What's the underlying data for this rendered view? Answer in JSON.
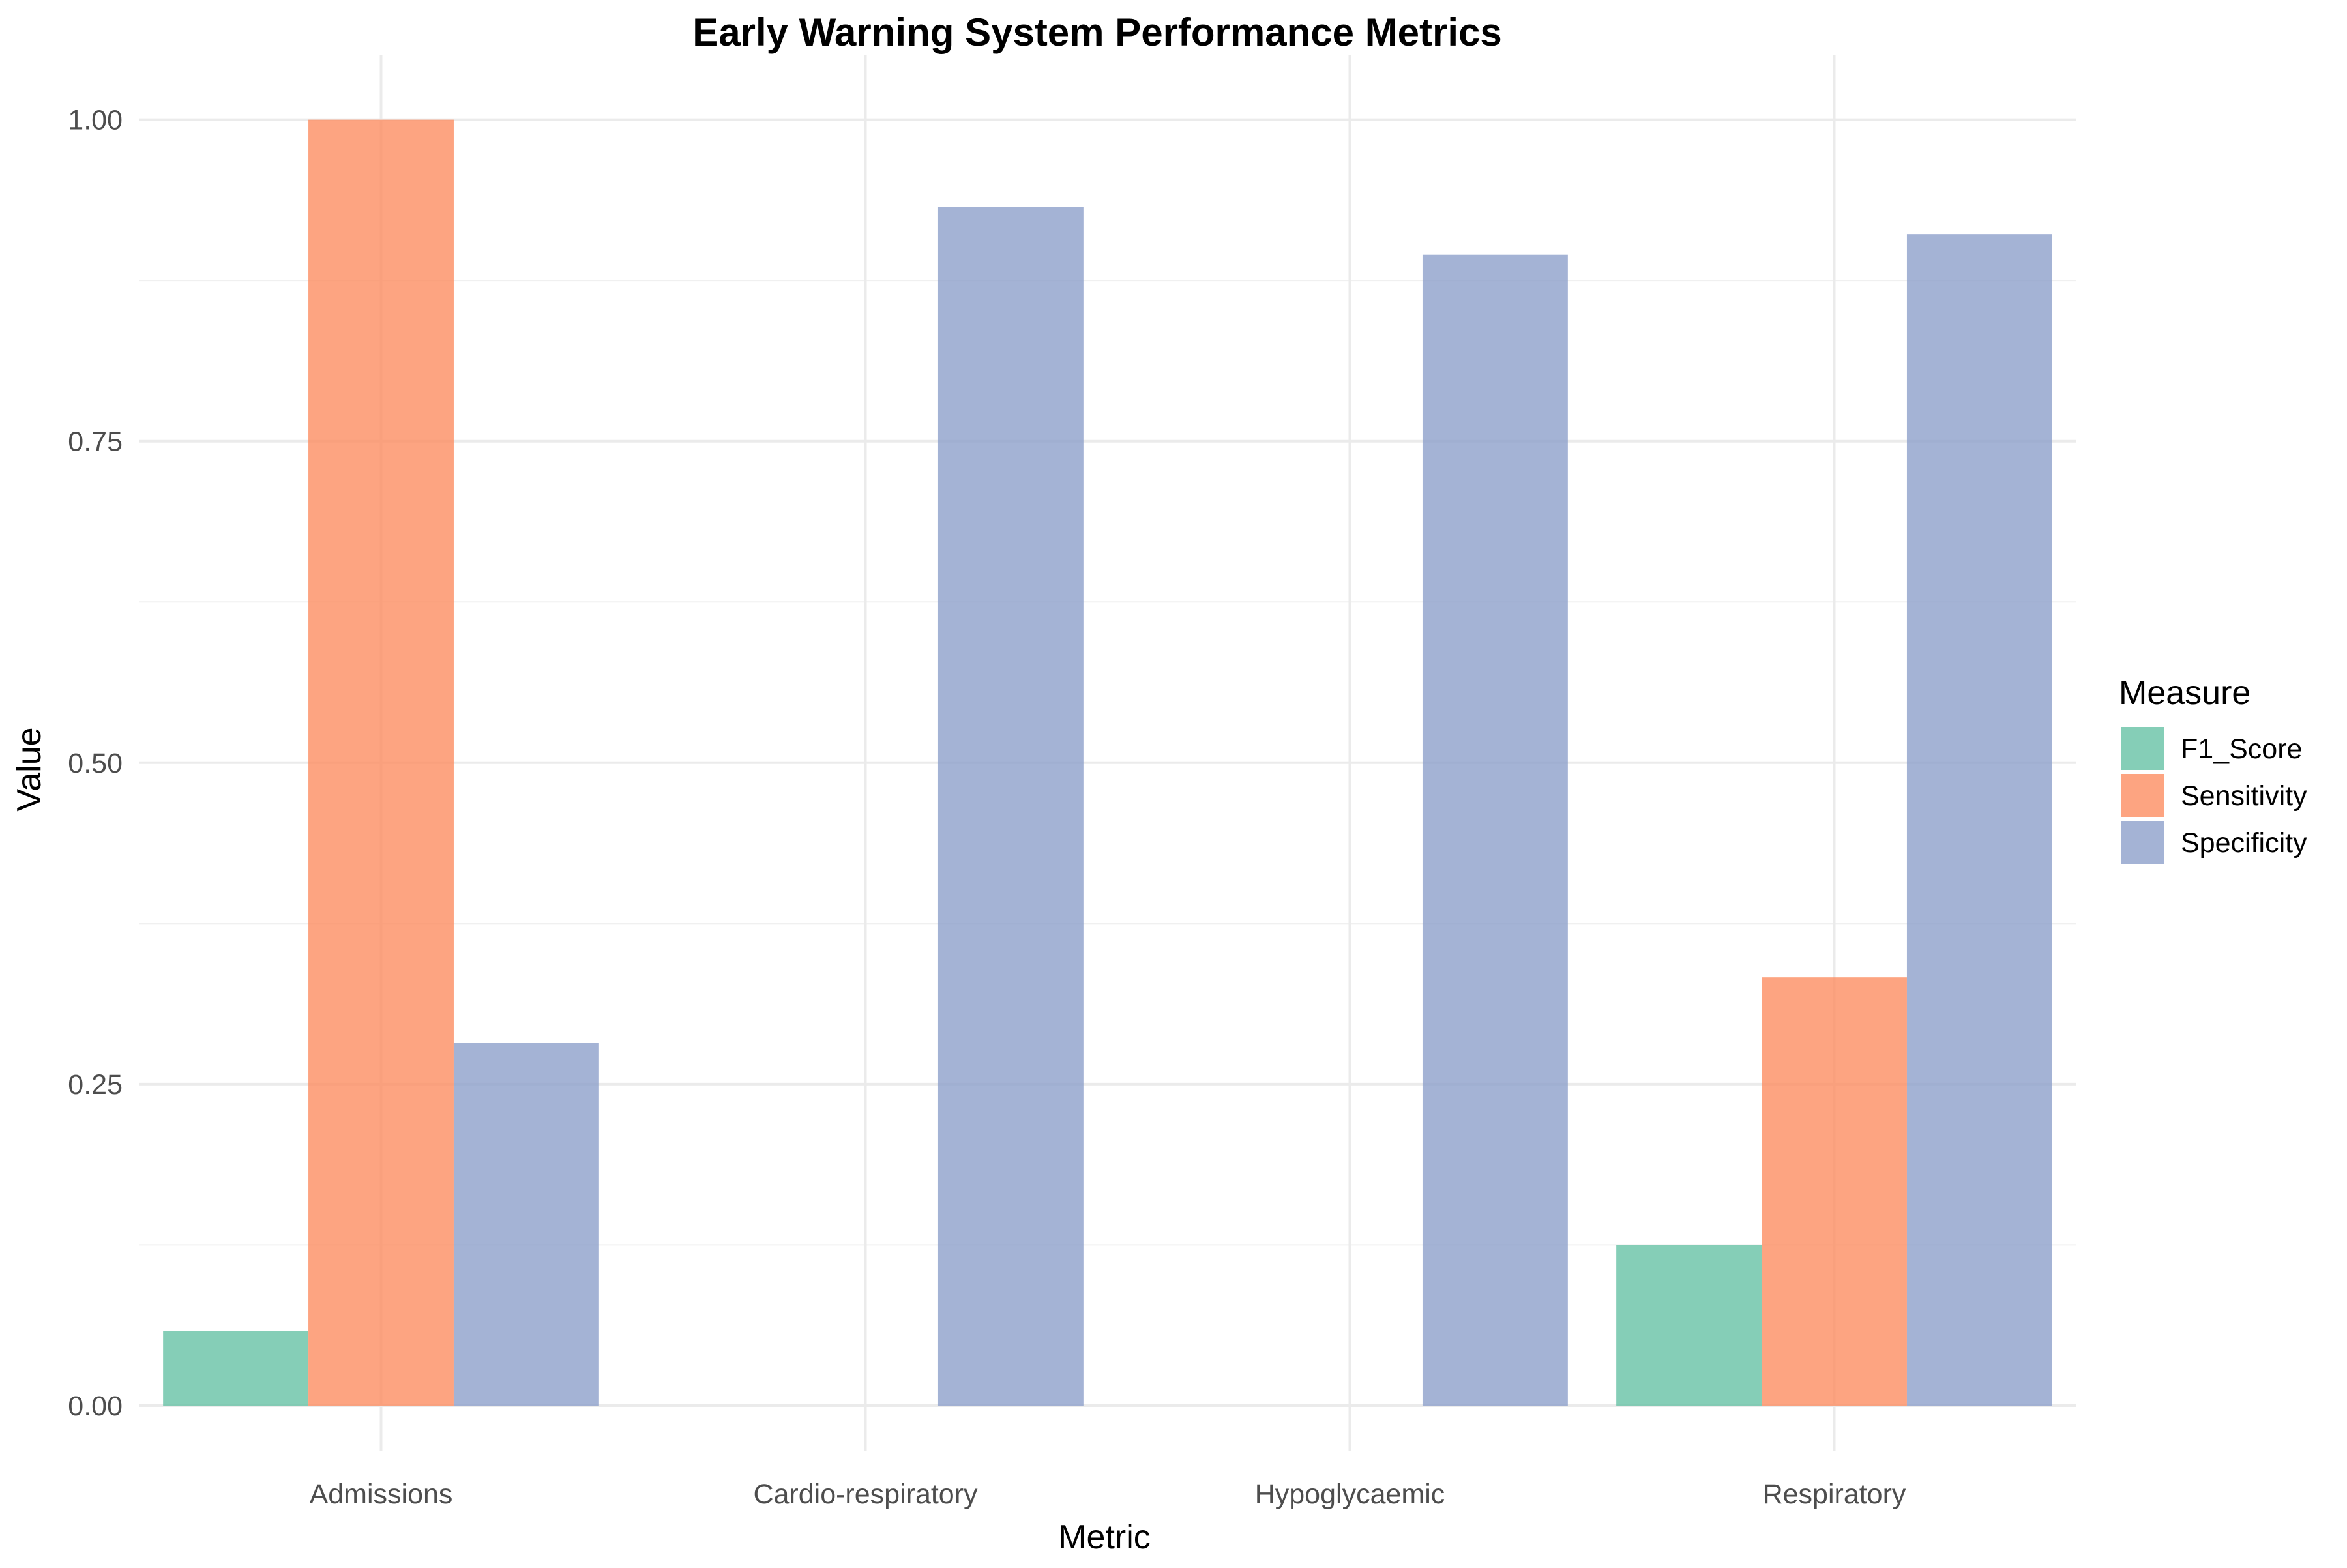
{
  "chart_data": {
    "type": "bar",
    "title": "Early Warning System Performance Metrics",
    "xlabel": "Metric",
    "ylabel": "Value",
    "categories": [
      "Admissions",
      "Cardio-respiratory",
      "Hypoglycaemic",
      "Respiratory"
    ],
    "series": [
      {
        "name": "F1_Score",
        "color": "#66c2a5",
        "values": [
          0.058,
          0.0,
          0.0,
          0.125
        ]
      },
      {
        "name": "Sensitivity",
        "color": "#fc8d62",
        "values": [
          1.0,
          0.0,
          0.0,
          0.333
        ]
      },
      {
        "name": "Specificity",
        "color": "#8da0cb",
        "values": [
          0.282,
          0.932,
          0.895,
          0.911
        ]
      }
    ],
    "ylim": [
      -0.035,
      1.05
    ],
    "yticks": [
      0.0,
      0.25,
      0.5,
      0.75,
      1.0
    ],
    "ytick_labels": [
      "0.00",
      "0.25",
      "0.50",
      "0.75",
      "1.00"
    ],
    "grid": true,
    "bar_opacity": 0.8,
    "legend": {
      "title": "Measure",
      "position": "right"
    }
  }
}
